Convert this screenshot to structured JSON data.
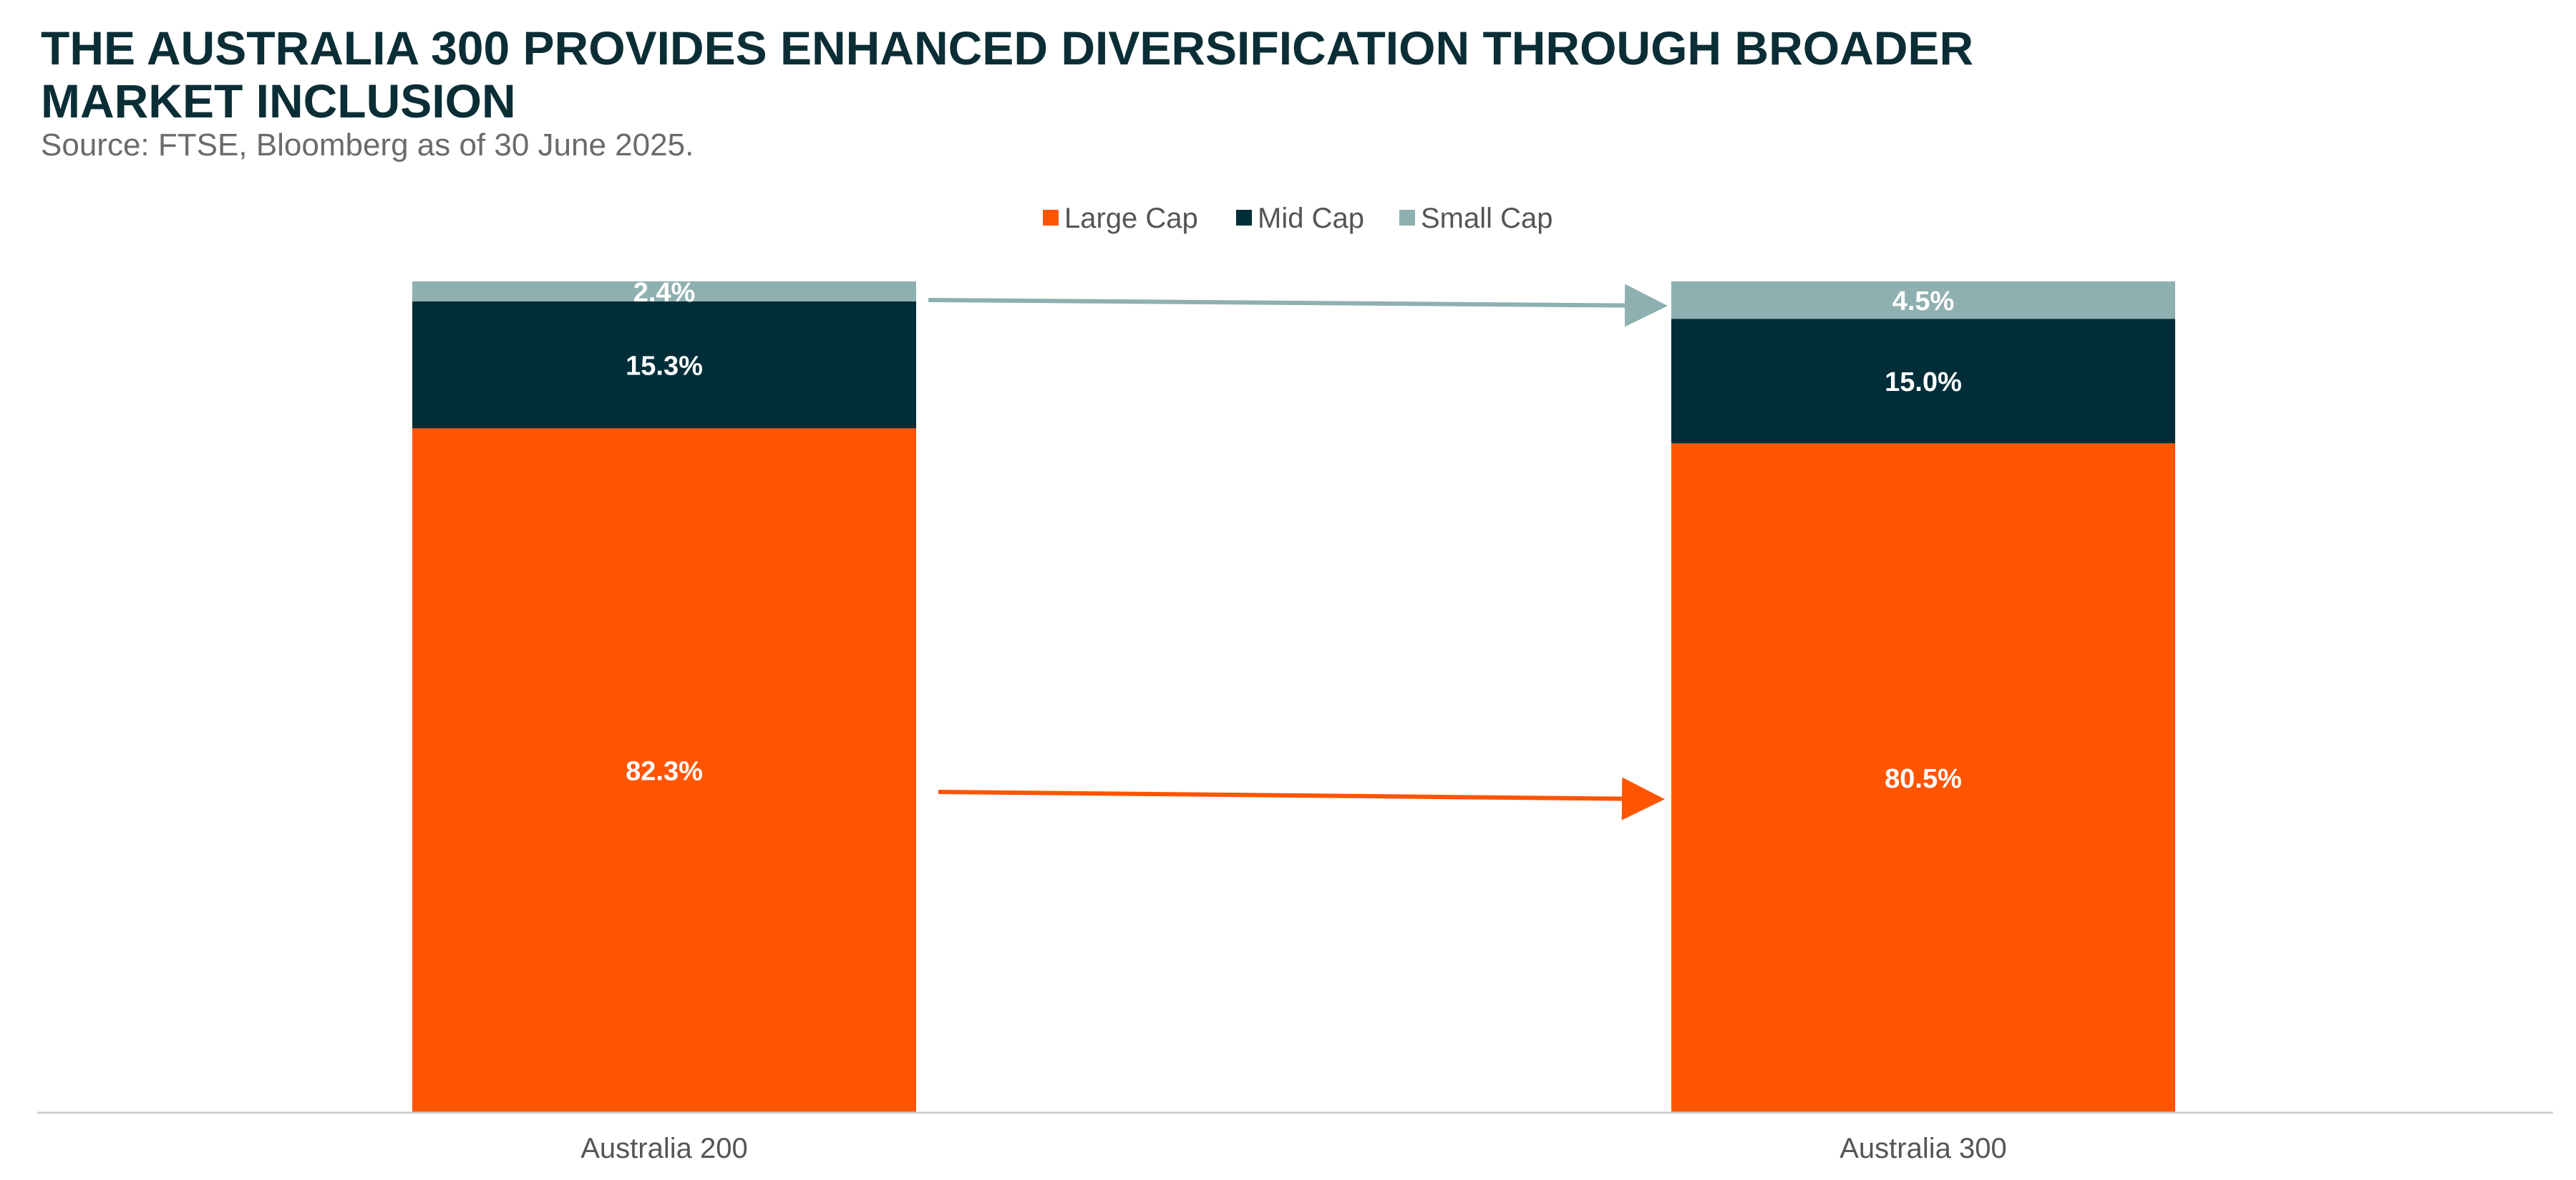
{
  "header": {
    "title": "THE AUSTRALIA 300 PROVIDES ENHANCED DIVERSIFICATION THROUGH BROADER MARKET INCLUSION",
    "source": "Source: FTSE, Bloomberg as of 30 June 2025."
  },
  "colors": {
    "large_cap": "#ff5500",
    "mid_cap": "#002e38",
    "small_cap": "#8fb0b0",
    "axis": "#d0d0d0",
    "label_text": "#ffffff",
    "tick_text": "#555555",
    "legend_text": "#555555"
  },
  "chart_data": {
    "type": "bar",
    "stacked": true,
    "categories": [
      "Australia 200",
      "Australia 300"
    ],
    "series": [
      {
        "name": "Large Cap",
        "values": [
          82.3,
          80.5
        ],
        "labels": [
          "82.3%",
          "80.5%"
        ]
      },
      {
        "name": "Mid Cap",
        "values": [
          15.3,
          15.0
        ],
        "labels": [
          "15.3%",
          "15.0%"
        ]
      },
      {
        "name": "Small Cap",
        "values": [
          2.4,
          4.5
        ],
        "labels": [
          "2.4%",
          "4.5%"
        ]
      }
    ],
    "ylim": [
      0,
      100
    ],
    "legend_position": "top",
    "grid": false,
    "annotations": [
      "small-cap arrow from Australia 200 to Australia 300",
      "large-cap arrow from Australia 200 to Australia 300"
    ]
  }
}
